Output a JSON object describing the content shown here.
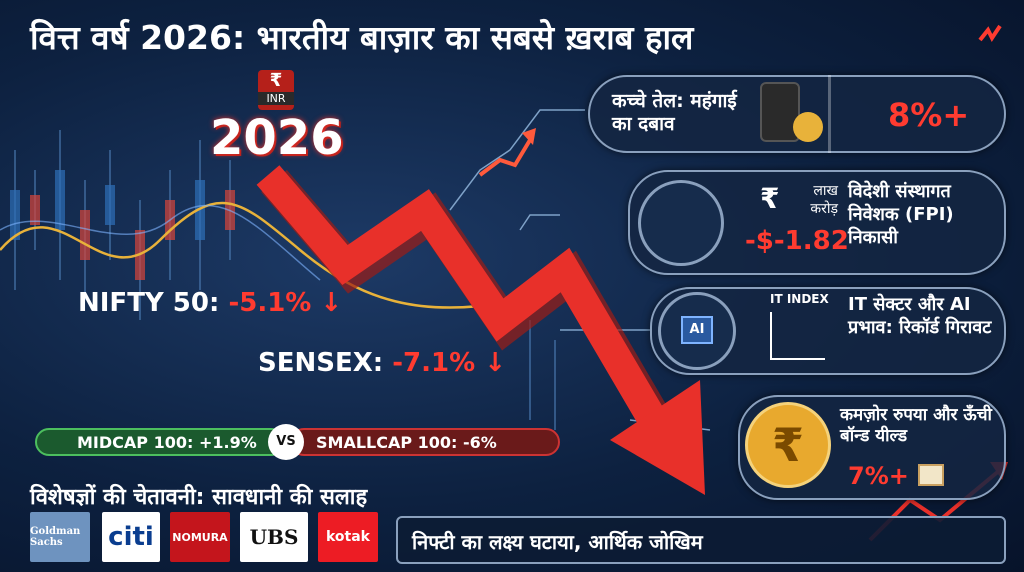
{
  "header": {
    "title": "वित्त वर्ष 2026: भारतीय बाज़ार का सबसे ख़राब हाल"
  },
  "badge": {
    "symbol": "₹",
    "code": "INR",
    "year": "2026"
  },
  "indices": {
    "nifty": {
      "label": "NIFTY 50:",
      "change": "-5.1%"
    },
    "sensex": {
      "label": "SENSEX:",
      "change": "-7.1%"
    }
  },
  "compare": {
    "left": "MIDCAP 100: +1.9%",
    "vs": "VS",
    "right": "SMALLCAP 100: -6%"
  },
  "experts": {
    "title": "विशेषज्ञों की चेतावनी: सावधानी की सलाह",
    "logos": [
      "Goldman Sachs",
      "citi",
      "NOMURA",
      "UBS",
      "kotak"
    ]
  },
  "footer": {
    "text": "निफ्टी का लक्ष्य घटाया, आर्थिक जोखिम"
  },
  "cards": [
    {
      "text": "कच्चे तेल: महंगाई का दबाव",
      "figure": "8%+"
    },
    {
      "symbol": "₹",
      "unit": "लाख करोड़",
      "figure": "-$-1.82",
      "text": "विदेशी संस्थागत निवेशक (FPI) निकासी"
    },
    {
      "chip": "AI",
      "index": "IT INDEX",
      "text": "IT सेक्टर और AI प्रभाव: रिकॉर्ड गिरावट"
    },
    {
      "text": "कमज़ोर रुपया और ऊँची बॉन्ड यील्ड",
      "figure": "7%+"
    }
  ]
}
